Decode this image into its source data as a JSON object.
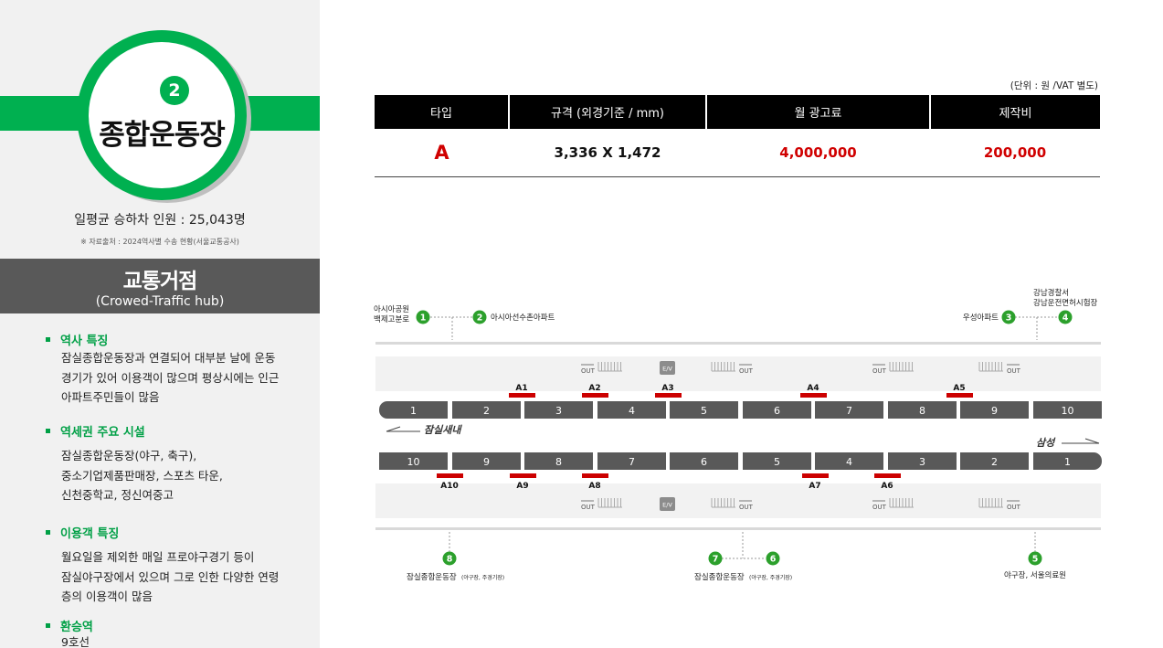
{
  "station": {
    "line_number": "2",
    "name": "종합운동장",
    "ridership": "일평균 승하차 인원 : 25,043명",
    "source": "※ 자료출처 : 2024역사별 수송 현황(서울교통공사)"
  },
  "hub": {
    "title": "교통거점",
    "subtitle": "(Crowed-Traffic hub)"
  },
  "features": [
    {
      "head": "역사 특징",
      "lines": [
        "잠실종합운동장과 연결되어 대부분 날에 운동",
        "경기가 있어 이용객이 많으며 평상시에는 인근",
        "아파트주민들이 많음"
      ]
    },
    {
      "head": "역세권 주요 시설",
      "lines": [
        "잠실종합운동장(야구, 축구),",
        "중소기업제품판매장, 스포츠 타운,",
        "신천중학교, 정신여중고"
      ]
    },
    {
      "head": "이용객 특징",
      "lines": [
        "월요일을 제외한 매일 프로야구경기 등이",
        "잠실야구장에서 있으며 그로 인한 다양한 연령",
        "층의 이용객이 많음"
      ]
    },
    {
      "head": "환승역",
      "lines": [
        "9호선"
      ]
    }
  ],
  "table": {
    "unit_note": "(단위 : 원 /VAT 별도)",
    "headers": [
      "타입",
      "규격 (외경기준 / mm)",
      "월 광고료",
      "제작비"
    ],
    "row": {
      "type": "A",
      "size": "3,336 X 1,472",
      "monthly_fee": "4,000,000",
      "production_cost": "200,000"
    }
  },
  "diagram": {
    "direction_left": "잠실새내",
    "direction_right": "삼성",
    "top_car_numbers": [
      "1",
      "2",
      "3",
      "4",
      "5",
      "6",
      "7",
      "8",
      "9",
      "10"
    ],
    "bottom_car_numbers": [
      "10",
      "9",
      "8",
      "7",
      "6",
      "5",
      "4",
      "3",
      "2",
      "1"
    ],
    "top_ad_labels": [
      "A1",
      "A2",
      "A3",
      "A4",
      "A5"
    ],
    "bottom_ad_labels": [
      "A10",
      "A9",
      "A8",
      "A7",
      "A6"
    ],
    "ev_label": "E/V",
    "out_label": "OUT",
    "exits_top": [
      {
        "num": "1",
        "label": "아시아공원\n백제고분로"
      },
      {
        "num": "2",
        "label": "아시아선수촌아파트"
      },
      {
        "num": "3",
        "label": "우성아파트"
      },
      {
        "num": "4",
        "label": "강남경찰서\n강남운전면허시험장"
      }
    ],
    "exits_bottom": [
      {
        "num": "8",
        "label": "잠실종합운동장",
        "note": "(야구장, 주경기장)"
      },
      {
        "num": "7",
        "label": "잠실종합운동장",
        "note": "(야구장, 주경기장)"
      },
      {
        "num": "6",
        "label": ""
      },
      {
        "num": "5",
        "label": "야구장, 서울의료원",
        "note": ""
      }
    ],
    "colors": {
      "exit_green": "#2ca02c",
      "ad_red": "#cc0000",
      "car_gray": "#595959"
    }
  }
}
